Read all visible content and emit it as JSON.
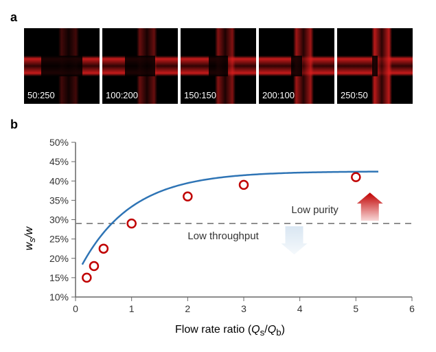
{
  "panelA": {
    "label": "a",
    "images": [
      {
        "ratio": "50:250",
        "coreWidthPct": 55,
        "vAlpha": 0.35
      },
      {
        "ratio": "100:200",
        "coreWidthPct": 40,
        "vAlpha": 0.55
      },
      {
        "ratio": "150:150",
        "coreWidthPct": 25,
        "vAlpha": 0.7
      },
      {
        "ratio": "200:100",
        "coreWidthPct": 15,
        "vAlpha": 0.85
      },
      {
        "ratio": "250:50",
        "coreWidthPct": 8,
        "vAlpha": 1.0
      }
    ]
  },
  "panelB": {
    "label": "b",
    "chart": {
      "type": "line-scatter",
      "xlabel_html": "Flow rate ratio (<i>Q</i><sub>s</sub>/<i>Q</i><sub>b</sub>)",
      "ylabel_html": "<i>w</i><sub>s</sub>/<i>w</i>",
      "xlim": [
        0,
        6
      ],
      "ylim": [
        10,
        50
      ],
      "xticks": [
        0,
        1,
        2,
        3,
        4,
        5,
        6
      ],
      "yticks": [
        10,
        15,
        20,
        25,
        30,
        35,
        40,
        45,
        50
      ],
      "ytick_suffix": "%",
      "threshold_y": 29,
      "points": [
        {
          "x": 0.2,
          "y": 15.0
        },
        {
          "x": 0.33,
          "y": 18.0
        },
        {
          "x": 0.5,
          "y": 22.5
        },
        {
          "x": 1.0,
          "y": 29.0
        },
        {
          "x": 2.0,
          "y": 36.0
        },
        {
          "x": 3.0,
          "y": 39.0
        },
        {
          "x": 5.0,
          "y": 41.0
        }
      ],
      "curve": {
        "a": 42.5,
        "b": 27.5,
        "k": 1.1
      },
      "colors": {
        "line": "#2e74b5",
        "marker_stroke": "#c00000",
        "marker_fill": "#ffffff",
        "axis": "#666666",
        "tick_text": "#333333",
        "dashed": "#808080"
      },
      "line_width": 2.5,
      "marker_radius": 6,
      "marker_stroke_width": 2.5,
      "tick_fontsize": 14,
      "label_fontsize": 16,
      "annotations": {
        "upper": "Low purity",
        "lower": "Low throughput"
      },
      "arrows": {
        "up": {
          "from": "#f8d7d7",
          "to": "#c00000"
        },
        "down": {
          "from": "#d9e6f2",
          "to": "#f5f9fc"
        }
      }
    }
  }
}
